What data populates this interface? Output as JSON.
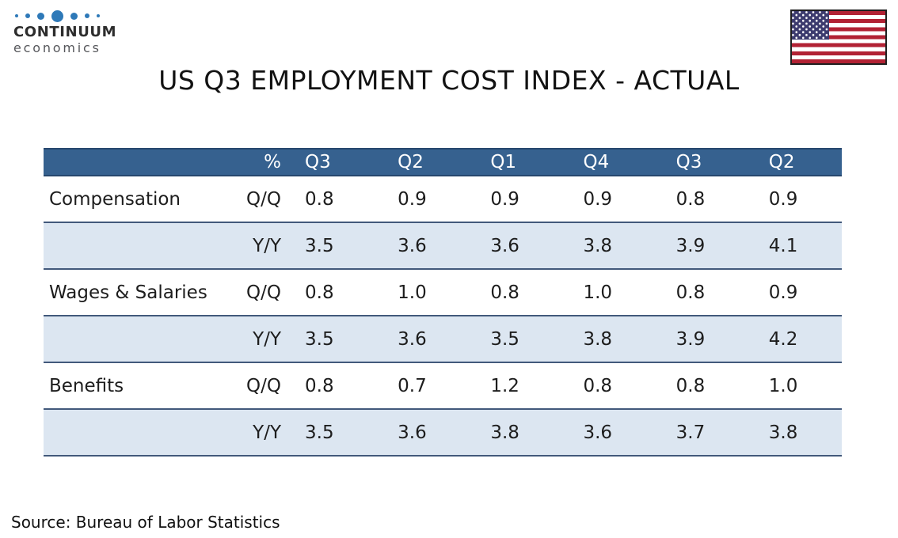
{
  "branding": {
    "name": "CONTINUUM",
    "subtitle": "economics"
  },
  "title": "US Q3 EMPLOYMENT COST INDEX - ACTUAL",
  "source": "Source: Bureau of Labor Statistics",
  "flag": {
    "country": "United States"
  },
  "colors": {
    "header_bg": "#36618F",
    "header_border": "#27476E",
    "band_bg": "#DCE6F1",
    "row_border": "#42597B",
    "flag_red": "#B22234",
    "flag_blue": "#3C3B6E",
    "dot_color": "#2E79B8"
  },
  "chart_data": {
    "type": "table",
    "title": "US Q3 EMPLOYMENT COST INDEX - ACTUAL",
    "columns": [
      "",
      "%",
      "Q3",
      "Q2",
      "Q1",
      "Q4",
      "Q3",
      "Q2"
    ],
    "rows": [
      {
        "label": "Compensation",
        "metric": "Q/Q",
        "values": [
          "0.8",
          "0.9",
          "0.9",
          "0.9",
          "0.8",
          "0.9"
        ]
      },
      {
        "label": "",
        "metric": "Y/Y",
        "values": [
          "3.5",
          "3.6",
          "3.6",
          "3.8",
          "3.9",
          "4.1"
        ]
      },
      {
        "label": "Wages & Salaries",
        "metric": "Q/Q",
        "values": [
          "0.8",
          "1.0",
          "0.8",
          "1.0",
          "0.8",
          "0.9"
        ]
      },
      {
        "label": "",
        "metric": "Y/Y",
        "values": [
          "3.5",
          "3.6",
          "3.5",
          "3.8",
          "3.9",
          "4.2"
        ]
      },
      {
        "label": "Benefits",
        "metric": "Q/Q",
        "values": [
          "0.8",
          "0.7",
          "1.2",
          "0.8",
          "0.8",
          "1.0"
        ]
      },
      {
        "label": "",
        "metric": "Y/Y",
        "values": [
          "3.5",
          "3.6",
          "3.8",
          "3.6",
          "3.7",
          "3.8"
        ]
      }
    ],
    "source": "Source: Bureau of Labor Statistics"
  }
}
